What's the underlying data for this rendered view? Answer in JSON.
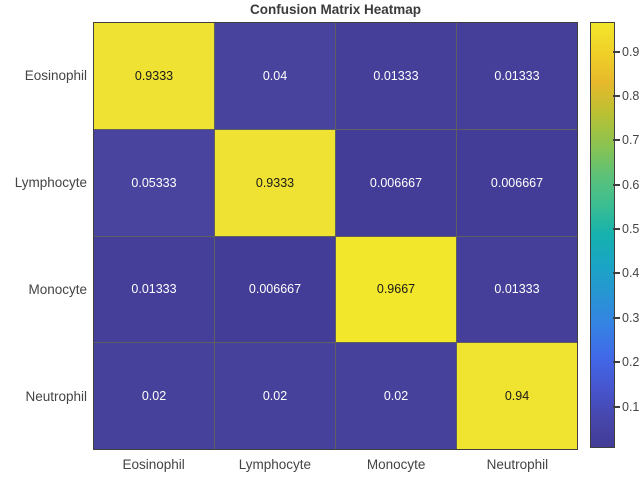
{
  "title": "Confusion Matrix Heatmap",
  "colors": {
    "background": "#ffffff",
    "axes_text": "#444444",
    "title_text": "#3b3b3b",
    "gridline": "#5f5f5f",
    "box_border": "#3f3f3f",
    "cell_text_on_dark": "#ffffff",
    "cell_text_on_light": "#1a1a1a"
  },
  "chart_data": {
    "type": "heatmap",
    "title": "Confusion Matrix Heatmap",
    "x_categories": [
      "Eosinophil",
      "Lymphocyte",
      "Monocyte",
      "Neutrophil"
    ],
    "y_categories": [
      "Eosinophil",
      "Lymphocyte",
      "Monocyte",
      "Neutrophil"
    ],
    "values": [
      [
        0.9333,
        0.04,
        0.01333,
        0.01333
      ],
      [
        0.05333,
        0.9333,
        0.006667,
        0.006667
      ],
      [
        0.01333,
        0.006667,
        0.9667,
        0.01333
      ],
      [
        0.02,
        0.02,
        0.02,
        0.94
      ]
    ],
    "cells": [
      [
        {
          "label": "0.9333",
          "bg": "#f0e232",
          "fg": "#1a1a1a"
        },
        {
          "label": "0.04",
          "bg": "#48439c",
          "fg": "#ffffff"
        },
        {
          "label": "0.01333",
          "bg": "#453f99",
          "fg": "#ffffff"
        },
        {
          "label": "0.01333",
          "bg": "#453f99",
          "fg": "#ffffff"
        }
      ],
      [
        {
          "label": "0.05333",
          "bg": "#49459e",
          "fg": "#ffffff"
        },
        {
          "label": "0.9333",
          "bg": "#f0e232",
          "fg": "#1a1a1a"
        },
        {
          "label": "0.006667",
          "bg": "#443d97",
          "fg": "#ffffff"
        },
        {
          "label": "0.006667",
          "bg": "#443d97",
          "fg": "#ffffff"
        }
      ],
      [
        {
          "label": "0.01333",
          "bg": "#453f99",
          "fg": "#ffffff"
        },
        {
          "label": "0.006667",
          "bg": "#443d97",
          "fg": "#ffffff"
        },
        {
          "label": "0.9667",
          "bg": "#f2e72b",
          "fg": "#1a1a1a"
        },
        {
          "label": "0.01333",
          "bg": "#453f99",
          "fg": "#ffffff"
        }
      ],
      [
        {
          "label": "0.02",
          "bg": "#46419a",
          "fg": "#ffffff"
        },
        {
          "label": "0.02",
          "bg": "#46419a",
          "fg": "#ffffff"
        },
        {
          "label": "0.02",
          "bg": "#46419a",
          "fg": "#ffffff"
        },
        {
          "label": "0.94",
          "bg": "#f0e430",
          "fg": "#1a1a1a"
        }
      ]
    ],
    "colorbar": {
      "vmin": 0.006667,
      "vmax": 0.9667,
      "tick_labels": [
        "0.9",
        "0.8",
        "0.7",
        "0.6",
        "0.5",
        "0.4",
        "0.3",
        "0.2",
        "0.1"
      ],
      "tick_values": [
        0.9,
        0.8,
        0.7,
        0.6,
        0.5,
        0.4,
        0.3,
        0.2,
        0.1
      ],
      "colormap_name": "parula",
      "colormap": [
        {
          "t": 0.0,
          "c": "#433c96"
        },
        {
          "t": 0.07,
          "c": "#4647ad"
        },
        {
          "t": 0.14,
          "c": "#4756cf"
        },
        {
          "t": 0.21,
          "c": "#4168e8"
        },
        {
          "t": 0.29,
          "c": "#3583e3"
        },
        {
          "t": 0.36,
          "c": "#2795d2"
        },
        {
          "t": 0.43,
          "c": "#1aa5c5"
        },
        {
          "t": 0.5,
          "c": "#15b1ae"
        },
        {
          "t": 0.57,
          "c": "#3bbe92"
        },
        {
          "t": 0.64,
          "c": "#5dc178"
        },
        {
          "t": 0.71,
          "c": "#8ac351"
        },
        {
          "t": 0.79,
          "c": "#bcc032"
        },
        {
          "t": 0.86,
          "c": "#e7b92c"
        },
        {
          "t": 0.93,
          "c": "#f0d028"
        },
        {
          "t": 1.0,
          "c": "#f2e72b"
        }
      ],
      "legend_position": "right"
    },
    "grid": true
  }
}
